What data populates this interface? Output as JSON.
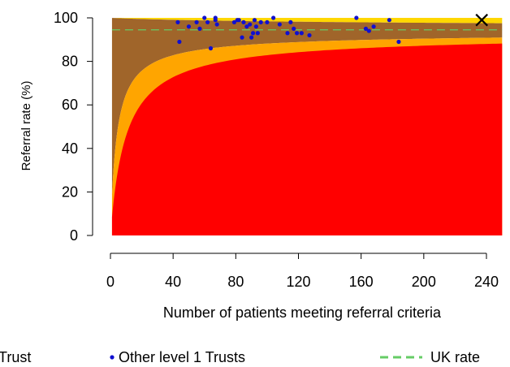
{
  "chart_data": {
    "type": "scatter",
    "xlabel": "Number of patients meeting referral criteria",
    "ylabel": "Referral rate (%)",
    "xlim": [
      0,
      240
    ],
    "ylim": [
      0,
      100
    ],
    "xticks": [
      0,
      40,
      80,
      120,
      160,
      200,
      240
    ],
    "yticks": [
      0,
      20,
      40,
      60,
      80,
      100
    ],
    "grid": false,
    "uk_rate": 94.5,
    "bands": {
      "outer_limit_color": "#FFD700",
      "middle_limit_color": "#FFA500",
      "inner_region_color": "#FF0000",
      "upper_region_color": "#A0652A"
    },
    "series": [
      {
        "name": "Other level 1 Trusts",
        "color": "#1010D0",
        "points": [
          [
            43,
            98
          ],
          [
            44,
            89
          ],
          [
            50,
            96
          ],
          [
            55,
            98
          ],
          [
            57,
            95
          ],
          [
            60,
            100
          ],
          [
            62,
            98
          ],
          [
            64,
            86
          ],
          [
            67,
            99
          ],
          [
            67,
            100
          ],
          [
            68,
            97
          ],
          [
            79,
            98
          ],
          [
            81,
            99
          ],
          [
            82,
            99
          ],
          [
            84,
            91
          ],
          [
            85,
            98
          ],
          [
            87,
            96
          ],
          [
            89,
            97
          ],
          [
            90,
            91
          ],
          [
            91,
            93
          ],
          [
            92,
            99
          ],
          [
            93,
            96
          ],
          [
            94,
            93
          ],
          [
            96,
            98
          ],
          [
            100,
            98
          ],
          [
            104,
            100
          ],
          [
            108,
            97
          ],
          [
            113,
            93
          ],
          [
            115,
            98
          ],
          [
            117,
            95
          ],
          [
            119,
            93
          ],
          [
            122,
            93
          ],
          [
            127,
            92
          ],
          [
            157,
            100
          ],
          [
            163,
            95
          ],
          [
            165,
            94
          ],
          [
            168,
            96
          ],
          [
            178,
            99
          ],
          [
            184,
            89
          ]
        ]
      }
    ],
    "highlighted_point": {
      "x": 237,
      "y": 99
    },
    "legend": {
      "placement": "bottom",
      "items": [
        {
          "label": "Trust",
          "marker": "cross"
        },
        {
          "label": "Other level 1 Trusts",
          "marker": "dot",
          "color": "#1010D0"
        },
        {
          "label": "UK rate",
          "marker": "dashed-line",
          "color": "#66CC66"
        }
      ]
    }
  }
}
